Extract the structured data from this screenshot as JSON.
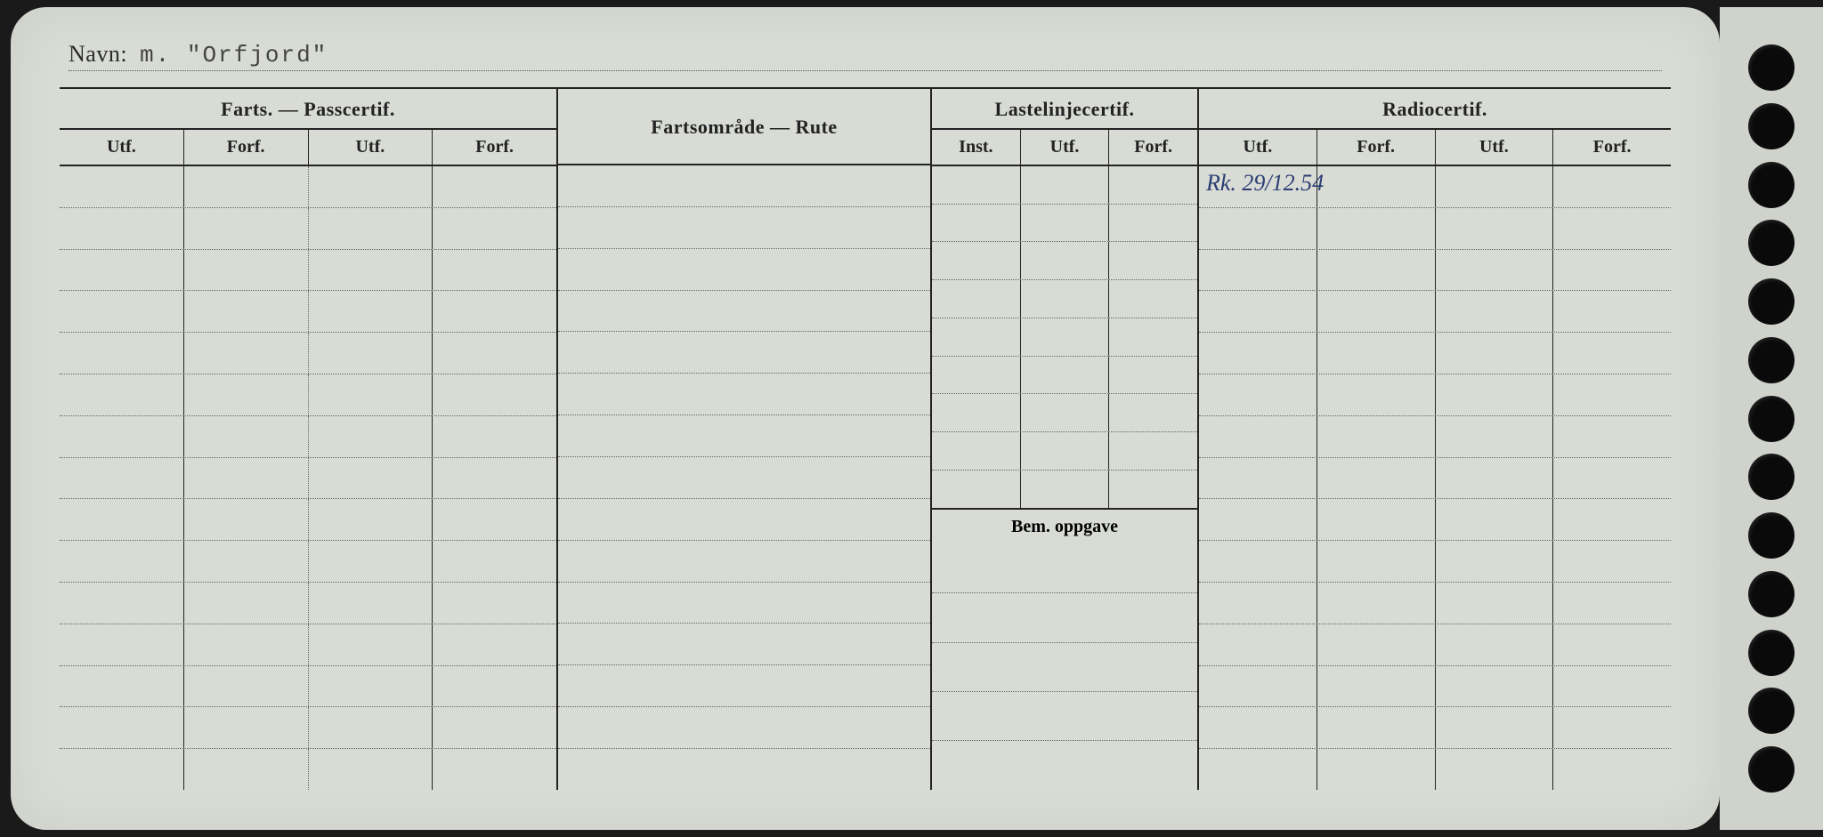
{
  "navn": {
    "label": "Navn:",
    "value": "m. \"Orfjord\""
  },
  "sections": {
    "farts": {
      "title": "Farts. — Passcertif.",
      "cols": [
        "Utf.",
        "Forf.",
        "Utf.",
        "Forf."
      ]
    },
    "rute": {
      "title": "Fartsområde — Rute"
    },
    "laste": {
      "title": "Lastelinjecertif.",
      "cols": [
        "Inst.",
        "Utf.",
        "Forf."
      ],
      "bem": "Bem. oppgave"
    },
    "radio": {
      "title": "Radiocertif.",
      "cols": [
        "Utf.",
        "Forf.",
        "Utf.",
        "Forf."
      ],
      "entry": "Rk. 29/12.54"
    }
  },
  "layout": {
    "row_count": 15,
    "laste_upper_rows": 9,
    "laste_lower_rows": 5,
    "punch_holes": 13
  },
  "colors": {
    "card_bg": "#d8dcd4",
    "ink": "#222222",
    "handwriting": "#2b3d73",
    "page_bg": "#1a1a1a"
  }
}
